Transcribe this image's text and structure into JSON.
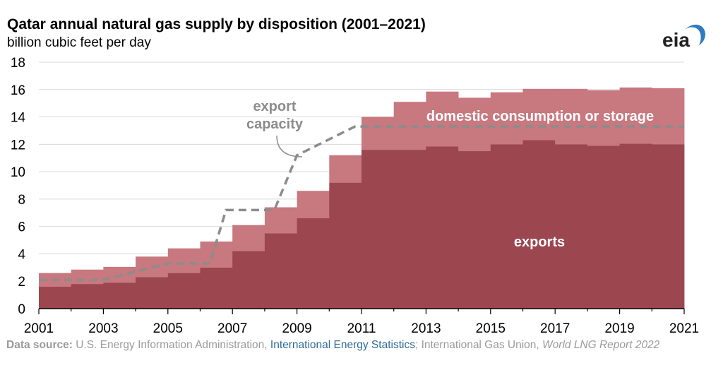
{
  "title": "Qatar annual natural gas supply by disposition (2001–2021)",
  "subtitle": "billion cubic feet per day",
  "logo_text": "eia",
  "source": {
    "prefix": "Data source:",
    "part1": " U.S. Energy Information Administration, ",
    "link": "International Energy Statistics",
    "part2": "; International Gas Union, ",
    "italic": "World LNG Report 2022"
  },
  "colors": {
    "exports": "#9c4650",
    "domestic": "#c8787f",
    "capacity": "#8c8c8c",
    "grid": "#d9d9d9",
    "axis": "#000000",
    "link": "#2f6c99"
  },
  "chart_data": {
    "type": "area",
    "subtype": "stacked step area",
    "title": "Qatar annual natural gas supply by disposition (2001–2021)",
    "ylabel": "billion cubic feet per day",
    "ylim": [
      0,
      18
    ],
    "yticks": [
      0,
      2,
      4,
      6,
      8,
      10,
      12,
      14,
      16,
      18
    ],
    "xlim": [
      2001,
      2021
    ],
    "xticks": [
      2001,
      2003,
      2005,
      2007,
      2009,
      2011,
      2013,
      2015,
      2017,
      2019,
      2021
    ],
    "grid": true,
    "x": [
      2001,
      2002,
      2003,
      2004,
      2005,
      2006,
      2007,
      2008,
      2009,
      2010,
      2011,
      2012,
      2013,
      2014,
      2015,
      2016,
      2017,
      2018,
      2019,
      2020
    ],
    "series": [
      {
        "name": "exports",
        "values": [
          1.6,
          1.8,
          1.9,
          2.3,
          2.6,
          3.0,
          4.2,
          5.5,
          6.6,
          9.2,
          11.6,
          11.6,
          11.85,
          11.5,
          12.0,
          12.3,
          12.0,
          11.9,
          12.05,
          12.0
        ]
      },
      {
        "name": "domestic consumption or storage",
        "values": [
          1.0,
          1.05,
          1.15,
          1.5,
          1.8,
          1.9,
          1.9,
          1.9,
          2.0,
          2.0,
          2.4,
          3.5,
          4.0,
          3.9,
          3.8,
          3.75,
          4.05,
          4.05,
          4.1,
          4.1
        ]
      }
    ],
    "capacity": {
      "name": "export capacity",
      "points": [
        [
          2001,
          2.1
        ],
        [
          2003,
          2.1
        ],
        [
          2005,
          3.3
        ],
        [
          2006.3,
          3.3
        ],
        [
          2006.8,
          7.2
        ],
        [
          2008.3,
          7.2
        ],
        [
          2009,
          11.2
        ],
        [
          2010.8,
          13.3
        ],
        [
          2021,
          13.3
        ]
      ]
    },
    "annotations": {
      "exports": "exports",
      "domestic": "domestic consumption or storage",
      "capacity_line1": "export",
      "capacity_line2": "capacity"
    }
  }
}
